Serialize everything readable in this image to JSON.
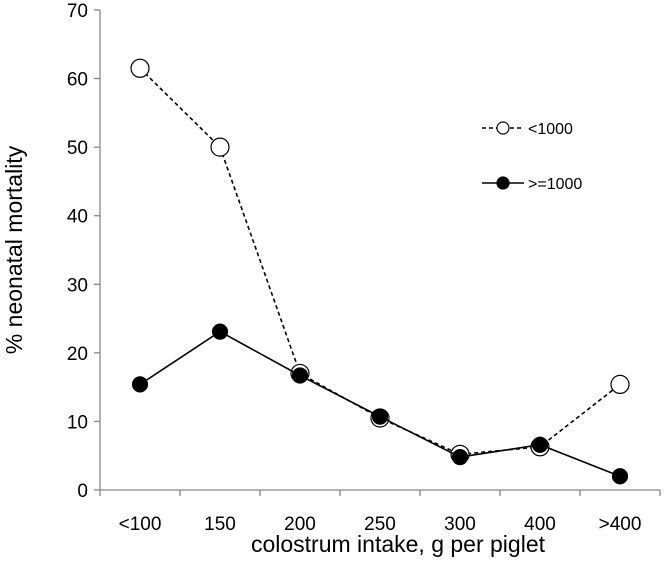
{
  "chart_data": {
    "type": "line",
    "title": "",
    "xlabel": "colostrum intake, g per piglet",
    "ylabel": "% neonatal mortality",
    "categories": [
      "<100",
      "150",
      "200",
      "250",
      "300",
      "400",
      ">400"
    ],
    "ylim": [
      0,
      70
    ],
    "yticks": [
      0,
      10,
      20,
      30,
      40,
      50,
      60,
      70
    ],
    "grid": false,
    "legend_position": "right",
    "series": [
      {
        "name": "<1000",
        "marker": "open-circle",
        "line": "dashed",
        "color": "#000000",
        "values": [
          61.5,
          50.0,
          17.0,
          10.5,
          5.2,
          6.3,
          15.4
        ]
      },
      {
        "name": ">=1000",
        "marker": "filled-circle",
        "line": "solid",
        "color": "#000000",
        "values": [
          15.4,
          23.1,
          16.7,
          10.7,
          4.8,
          6.6,
          2.0
        ]
      }
    ]
  }
}
